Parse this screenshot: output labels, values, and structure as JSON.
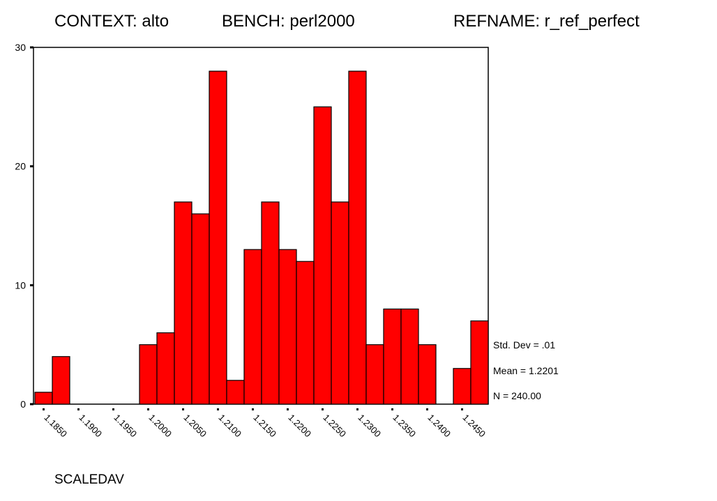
{
  "chart_data": {
    "type": "histogram",
    "title": [
      "CONTEXT: alto",
      "BENCH: perl2000",
      "REFNAME: r_ref_perfect"
    ],
    "xlabel": "SCALEDAV",
    "annotations": [
      "Std. Dev = .01",
      "Mean = 1.2201",
      "N = 240.00"
    ],
    "bins": [
      1.18375,
      1.18625,
      1.18875,
      1.19125,
      1.19375,
      1.19625,
      1.19875,
      1.20125,
      1.20375,
      1.20625,
      1.20875,
      1.21125,
      1.21375,
      1.21625,
      1.21875,
      1.22125,
      1.22375,
      1.22625,
      1.22875,
      1.23125,
      1.23375,
      1.23625,
      1.23875,
      1.24125,
      1.24375,
      1.24625,
      1.24875
    ],
    "counts": [
      1,
      4,
      0,
      0,
      0,
      0,
      5,
      6,
      17,
      16,
      28,
      2,
      13,
      17,
      13,
      12,
      25,
      17,
      28,
      5,
      8,
      8,
      5,
      0,
      3,
      7
    ],
    "color": "#ff0000",
    "xlim": [
      1.18375,
      1.24875
    ],
    "xticks": [
      {
        "value": 1.185,
        "label": "1.1850"
      },
      {
        "value": 1.19,
        "label": "1.1900"
      },
      {
        "value": 1.195,
        "label": "1.1950"
      },
      {
        "value": 1.2,
        "label": "1.2000"
      },
      {
        "value": 1.205,
        "label": "1.2050"
      },
      {
        "value": 1.21,
        "label": "1.2100"
      },
      {
        "value": 1.215,
        "label": "1.2150"
      },
      {
        "value": 1.22,
        "label": "1.2200"
      },
      {
        "value": 1.225,
        "label": "1.2250"
      },
      {
        "value": 1.23,
        "label": "1.2300"
      },
      {
        "value": 1.235,
        "label": "1.2350"
      },
      {
        "value": 1.24,
        "label": "1.2400"
      },
      {
        "value": 1.245,
        "label": "1.2450"
      }
    ],
    "ylim": [
      0,
      30
    ],
    "yticks": [
      0,
      10,
      20,
      30
    ]
  }
}
